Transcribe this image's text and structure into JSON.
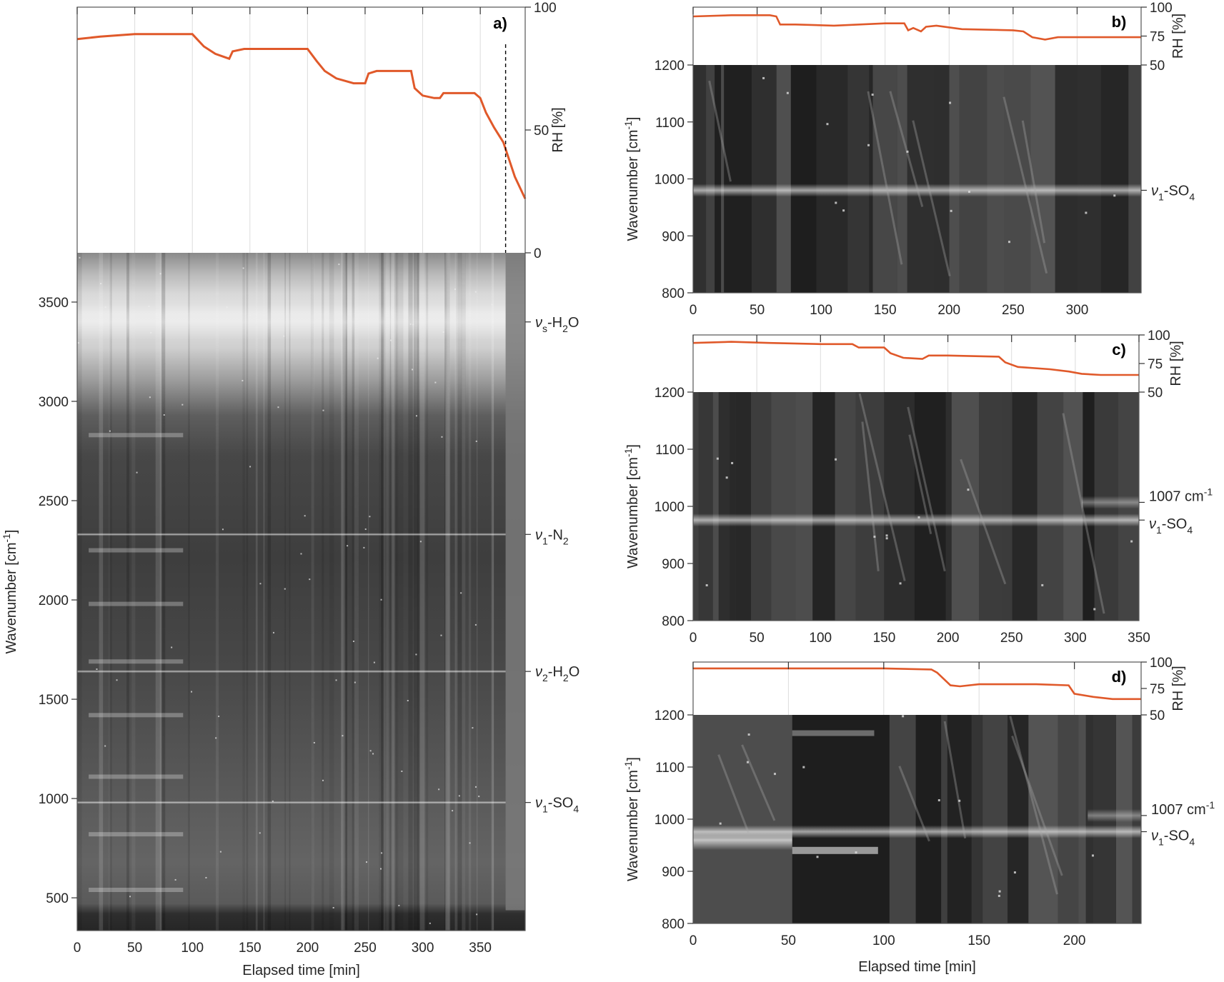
{
  "figure": {
    "xlabel": "Elapsed time [min]",
    "ylabel_wavenumber": "Wavenumber [cm-1]",
    "ylabel_rh": "RH [%]",
    "rh_color": "#e0592a"
  },
  "chart_data": [
    {
      "id": "a",
      "type": "heatmap",
      "panel_label": "a)",
      "title": "",
      "xlabel": "Elapsed time [min]",
      "ylabel": "Wavenumber [cm-1]",
      "ylabel_right": "RH [%]",
      "xlim": [
        0,
        389
      ],
      "ylim": [
        335,
        3748
      ],
      "xticks": [
        0,
        50,
        100,
        150,
        200,
        250,
        300,
        350
      ],
      "yticks": [
        500,
        1000,
        1500,
        2000,
        2500,
        3000,
        3500
      ],
      "rh_ylim": [
        0,
        100
      ],
      "rh_yticks": [
        0,
        50,
        100
      ],
      "dashed_vline_x": 372,
      "annotations": [
        {
          "text": "ν_s-H2O",
          "y": 3400
        },
        {
          "text": "ν_1-N2",
          "y": 2330
        },
        {
          "text": "ν_2-H2O",
          "y": 1640
        },
        {
          "text": "ν_1-SO4",
          "y": 980
        }
      ],
      "rh_series": {
        "name": "RH",
        "x": [
          0,
          20,
          50,
          80,
          100,
          110,
          120,
          132,
          135,
          145,
          170,
          200,
          208,
          215,
          225,
          240,
          250,
          253,
          260,
          290,
          293,
          300,
          310,
          315,
          318,
          330,
          345,
          350,
          355,
          362,
          370,
          380,
          389
        ],
        "y": [
          87,
          88,
          89,
          89,
          89,
          84,
          81,
          79,
          82,
          83,
          83,
          83,
          78,
          74,
          71,
          69,
          69,
          73,
          74,
          74,
          67,
          64,
          63,
          63,
          65,
          65,
          65,
          63,
          57,
          51,
          45,
          31,
          22
        ]
      }
    },
    {
      "id": "b",
      "type": "heatmap",
      "panel_label": "b)",
      "xlabel": "",
      "ylabel": "Wavenumber [cm-1]",
      "ylabel_right": "RH [%]",
      "xlim": [
        0,
        350
      ],
      "ylim": [
        800,
        1200
      ],
      "xticks": [
        0,
        50,
        100,
        150,
        200,
        250,
        300
      ],
      "yticks": [
        800,
        900,
        1000,
        1100,
        1200
      ],
      "rh_ylim": [
        50,
        100
      ],
      "rh_yticks": [
        50,
        75,
        100
      ],
      "annotations": [
        {
          "text": "ν_1-SO4",
          "y": 980
        }
      ],
      "rh_series": {
        "name": "RH",
        "x": [
          0,
          30,
          60,
          65,
          68,
          80,
          110,
          150,
          165,
          168,
          172,
          178,
          182,
          190,
          210,
          250,
          258,
          265,
          275,
          285,
          310,
          350
        ],
        "y": [
          92,
          93,
          93,
          92,
          85,
          85,
          84,
          86,
          86,
          80,
          82,
          79,
          83,
          84,
          81,
          80,
          79,
          74,
          72,
          74,
          74,
          74
        ]
      }
    },
    {
      "id": "c",
      "type": "heatmap",
      "panel_label": "c)",
      "xlabel": "",
      "ylabel": "Wavenumber [cm-1]",
      "ylabel_right": "RH [%]",
      "xlim": [
        0,
        350
      ],
      "ylim": [
        800,
        1200
      ],
      "xticks": [
        0,
        50,
        100,
        150,
        200,
        250,
        300,
        350
      ],
      "yticks": [
        800,
        900,
        1000,
        1100,
        1200
      ],
      "rh_ylim": [
        50,
        100
      ],
      "rh_yticks": [
        50,
        75,
        100
      ],
      "annotations": [
        {
          "text": "1007 cm-1",
          "y": 1007
        },
        {
          "text": "ν_1-SO4",
          "y": 976
        }
      ],
      "rh_series": {
        "name": "RH",
        "x": [
          0,
          30,
          60,
          100,
          125,
          130,
          150,
          155,
          165,
          180,
          185,
          200,
          240,
          245,
          255,
          280,
          295,
          305,
          320,
          350
        ],
        "y": [
          93,
          94,
          93,
          92,
          92,
          89,
          89,
          84,
          80,
          79,
          82,
          82,
          81,
          76,
          72,
          70,
          68,
          66,
          65,
          65
        ]
      }
    },
    {
      "id": "d",
      "type": "heatmap",
      "panel_label": "d)",
      "xlabel": "Elapsed time [min]",
      "ylabel": "Wavenumber [cm-1]",
      "ylabel_right": "RH [%]",
      "xlim": [
        0,
        235
      ],
      "ylim": [
        800,
        1200
      ],
      "xticks": [
        0,
        50,
        100,
        150,
        200
      ],
      "yticks": [
        800,
        900,
        1000,
        1100,
        1200
      ],
      "rh_ylim": [
        50,
        100
      ],
      "rh_yticks": [
        50,
        75,
        100
      ],
      "annotations": [
        {
          "text": "1007 cm-1",
          "y": 1007
        },
        {
          "text": "ν_1-SO4",
          "y": 976
        }
      ],
      "rh_series": {
        "name": "RH",
        "x": [
          0,
          50,
          100,
          125,
          128,
          135,
          140,
          150,
          180,
          197,
          200,
          210,
          220,
          235
        ],
        "y": [
          94,
          94,
          94,
          93,
          90,
          78,
          77,
          79,
          79,
          78,
          70,
          67,
          65,
          65
        ]
      }
    }
  ]
}
